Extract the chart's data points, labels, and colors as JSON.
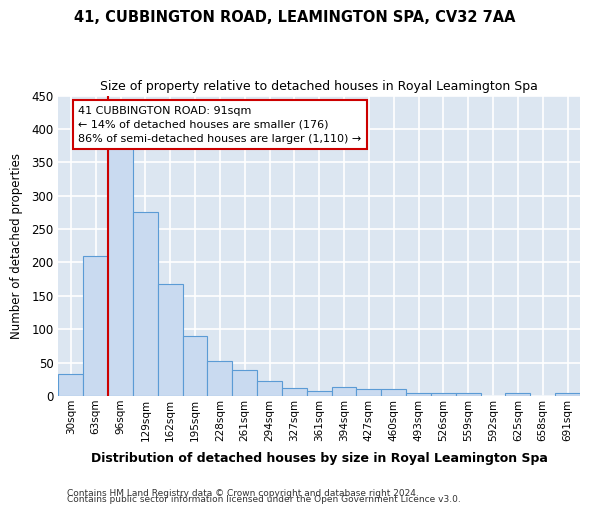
{
  "title": "41, CUBBINGTON ROAD, LEAMINGTON SPA, CV32 7AA",
  "subtitle": "Size of property relative to detached houses in Royal Leamington Spa",
  "xlabel": "Distribution of detached houses by size in Royal Leamington Spa",
  "ylabel": "Number of detached properties",
  "footer1": "Contains HM Land Registry data © Crown copyright and database right 2024.",
  "footer2": "Contains public sector information licensed under the Open Government Licence v3.0.",
  "bar_labels": [
    "30sqm",
    "63sqm",
    "96sqm",
    "129sqm",
    "162sqm",
    "195sqm",
    "228sqm",
    "261sqm",
    "294sqm",
    "327sqm",
    "361sqm",
    "394sqm",
    "427sqm",
    "460sqm",
    "493sqm",
    "526sqm",
    "559sqm",
    "592sqm",
    "625sqm",
    "658sqm",
    "691sqm"
  ],
  "bar_values": [
    33,
    210,
    378,
    275,
    167,
    90,
    53,
    39,
    22,
    12,
    8,
    13,
    11,
    10,
    5,
    5,
    5,
    0,
    4,
    0,
    4
  ],
  "bar_color": "#c9daf0",
  "bar_edge_color": "#5b9bd5",
  "bg_color": "#dce6f1",
  "grid_color": "#ffffff",
  "property_line_color": "#cc0000",
  "annotation_text": "41 CUBBINGTON ROAD: 91sqm\n← 14% of detached houses are smaller (176)\n86% of semi-detached houses are larger (1,110) →",
  "annotation_box_color": "#cc0000",
  "ylim": [
    0,
    450
  ],
  "yticks": [
    0,
    50,
    100,
    150,
    200,
    250,
    300,
    350,
    400,
    450
  ],
  "fig_bg": "#ffffff"
}
